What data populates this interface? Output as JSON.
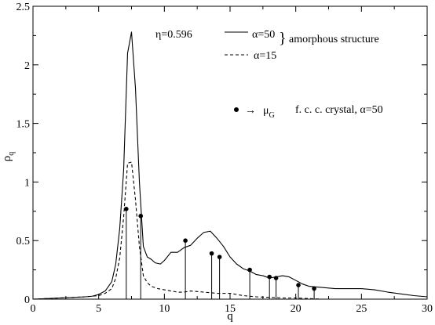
{
  "chart_data": {
    "type": "line",
    "xlabel": "q",
    "ylabel": {
      "base": "ρ",
      "sub": "q"
    },
    "xlim": [
      0,
      30
    ],
    "ylim": [
      0,
      2.5
    ],
    "xticks": [
      0,
      5,
      10,
      15,
      20,
      25,
      30
    ],
    "yticks": [
      0,
      0.5,
      1,
      1.5,
      2,
      2.5
    ],
    "xtick_labels": [
      "0",
      "5",
      "10",
      "15",
      "20",
      "25",
      "30"
    ],
    "ytick_labels": [
      "0",
      "0.5",
      "1",
      "1.5",
      "2",
      "2.5"
    ],
    "grid": false,
    "legend_position": "top-center",
    "annotations": {
      "eta": "η=0.596",
      "alpha50": "α=50",
      "alpha15": "α=15",
      "brace": "}",
      "amorphous": "amorphous structure",
      "arrow": "→",
      "mu": "μ",
      "mu_sub": "G",
      "crystal": "f. c. c. crystal, α=50"
    },
    "series": [
      {
        "name": "α=50",
        "style": "solid",
        "color": "#000000",
        "x": [
          0,
          1,
          2,
          3,
          4,
          4.5,
          5,
          5.5,
          6,
          6.3,
          6.6,
          6.9,
          7.2,
          7.5,
          7.8,
          8.1,
          8.4,
          8.7,
          9.0,
          9.3,
          9.7,
          10.0,
          10.5,
          11.0,
          11.5,
          12.0,
          12.5,
          13.0,
          13.5,
          14.0,
          14.5,
          15.0,
          15.5,
          16.0,
          16.5,
          17.0,
          17.5,
          18.0,
          18.5,
          19.0,
          19.5,
          20.0,
          20.5,
          21.0,
          22.0,
          23.0,
          24.0,
          25.0,
          26.0,
          27.0,
          28.0,
          29.0,
          30.0
        ],
        "y": [
          0,
          0.005,
          0.01,
          0.015,
          0.02,
          0.025,
          0.04,
          0.07,
          0.15,
          0.3,
          0.6,
          1.1,
          2.1,
          2.28,
          1.8,
          1.0,
          0.45,
          0.36,
          0.34,
          0.31,
          0.3,
          0.33,
          0.4,
          0.4,
          0.44,
          0.46,
          0.52,
          0.57,
          0.58,
          0.52,
          0.45,
          0.36,
          0.3,
          0.26,
          0.24,
          0.21,
          0.2,
          0.18,
          0.19,
          0.2,
          0.19,
          0.16,
          0.13,
          0.11,
          0.1,
          0.09,
          0.09,
          0.09,
          0.08,
          0.06,
          0.045,
          0.03,
          0.02
        ]
      },
      {
        "name": "α=15",
        "style": "dashed",
        "color": "#000000",
        "x": [
          0,
          1,
          2,
          3,
          4,
          4.5,
          5,
          5.5,
          6,
          6.3,
          6.6,
          6.9,
          7.2,
          7.5,
          7.8,
          8.1,
          8.4,
          8.7,
          9.0,
          9.5,
          10.0,
          10.5,
          11.0,
          11.5,
          12.0,
          13.0,
          14.0,
          15.0,
          16.0,
          17.0,
          18.0,
          19.0,
          20.0,
          21.0,
          22.0
        ],
        "y": [
          0,
          0.005,
          0.01,
          0.015,
          0.02,
          0.025,
          0.03,
          0.05,
          0.09,
          0.18,
          0.35,
          0.7,
          1.16,
          1.17,
          0.85,
          0.45,
          0.2,
          0.14,
          0.11,
          0.09,
          0.08,
          0.07,
          0.06,
          0.06,
          0.07,
          0.06,
          0.05,
          0.05,
          0.03,
          0.02,
          0.015,
          0.01,
          0.01,
          0.005,
          0
        ]
      }
    ],
    "crystal_points": {
      "name": "μ_G f. c. c. crystal, α=50",
      "marker": "filled-circle-with-stem",
      "x": [
        7.1,
        8.2,
        11.6,
        13.6,
        14.2,
        16.5,
        18.0,
        18.5,
        20.2,
        21.4
      ],
      "y": [
        0.77,
        0.71,
        0.5,
        0.39,
        0.36,
        0.25,
        0.19,
        0.18,
        0.12,
        0.09
      ]
    }
  }
}
